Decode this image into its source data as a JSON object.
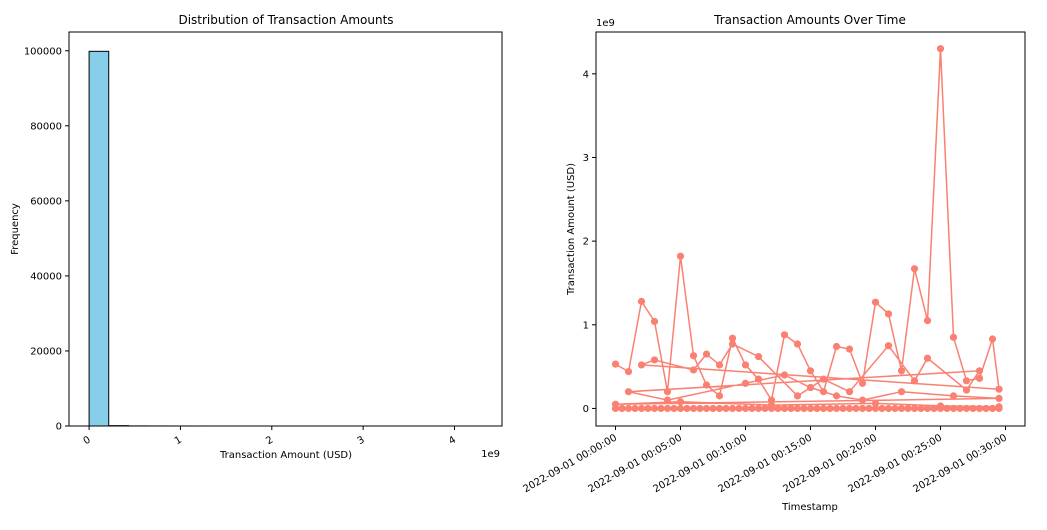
{
  "chart_data": [
    {
      "type": "bar",
      "title": "Distribution of Transaction Amounts",
      "xlabel": "Transaction Amount (USD)",
      "ylabel": "Frequency",
      "x_offset_label": "1e9",
      "xlim": [
        -0.22,
        4.52
      ],
      "ylim": [
        0,
        105000
      ],
      "x_ticks": [
        0,
        1,
        2,
        3,
        4
      ],
      "x_tick_labels": [
        "0",
        "1",
        "2",
        "3",
        "4"
      ],
      "y_ticks": [
        0,
        20000,
        40000,
        60000,
        80000,
        100000
      ],
      "y_tick_labels": [
        "0",
        "20000",
        "40000",
        "60000",
        "80000",
        "100000"
      ],
      "bins": [
        [
          0,
          0.215,
          99850
        ],
        [
          0.215,
          0.43,
          95
        ],
        [
          0.43,
          0.645,
          25
        ],
        [
          0.645,
          0.86,
          12
        ],
        [
          0.86,
          1.075,
          6
        ],
        [
          1.075,
          1.29,
          4
        ],
        [
          1.29,
          1.505,
          2
        ],
        [
          1.505,
          1.72,
          2
        ],
        [
          1.72,
          1.935,
          1
        ],
        [
          4.085,
          4.3,
          1
        ]
      ],
      "bar_color": "#87ceeb",
      "edge_color": "#000000",
      "grid": false
    },
    {
      "type": "line",
      "title": "Transaction Amounts Over Time",
      "xlabel": "Timestamp",
      "ylabel": "Transaction Amount (USD)",
      "y_offset_label": "1e9",
      "xlim_minutes": [
        -1.5,
        31.5
      ],
      "ylim": [
        -0.21,
        4.5
      ],
      "x_ticks_minutes": [
        0,
        5,
        10,
        15,
        20,
        25,
        30
      ],
      "x_tick_labels": [
        "2022-09-01 00:00:00",
        "2022-09-01 00:05:00",
        "2022-09-01 00:10:00",
        "2022-09-01 00:15:00",
        "2022-09-01 00:20:00",
        "2022-09-01 00:25:00",
        "2022-09-01 00:30:00"
      ],
      "y_ticks": [
        0,
        1,
        2,
        3,
        4
      ],
      "y_tick_labels": [
        "0",
        "1",
        "2",
        "3",
        "4"
      ],
      "line_color": "#fa8072",
      "marker": "o",
      "grid": false,
      "points": [
        [
          0,
          0.53
        ],
        [
          1,
          0.44
        ],
        [
          2,
          1.28
        ],
        [
          3,
          1.04
        ],
        [
          4,
          0.2
        ],
        [
          5,
          1.82
        ],
        [
          6,
          0.63
        ],
        [
          7,
          0.28
        ],
        [
          8,
          0.15
        ],
        [
          9,
          0.84
        ],
        [
          10,
          0.52
        ],
        [
          11,
          0.35
        ],
        [
          12,
          0.1
        ],
        [
          13,
          0.88
        ],
        [
          14,
          0.77
        ],
        [
          15,
          0.45
        ],
        [
          16,
          0.2
        ],
        [
          17,
          0.74
        ],
        [
          18,
          0.71
        ],
        [
          19,
          0.3
        ],
        [
          20,
          1.27
        ],
        [
          21,
          1.13
        ],
        [
          22,
          0.45
        ],
        [
          23,
          1.67
        ],
        [
          24,
          1.05
        ],
        [
          25,
          4.3
        ],
        [
          26,
          0.85
        ],
        [
          27,
          0.33
        ],
        [
          28,
          0.36
        ],
        [
          29,
          0.83
        ],
        [
          29.5,
          0.23
        ],
        [
          2,
          0.52
        ],
        [
          3,
          0.58
        ],
        [
          6,
          0.46
        ],
        [
          7,
          0.65
        ],
        [
          8,
          0.52
        ],
        [
          9,
          0.77
        ],
        [
          11,
          0.62
        ],
        [
          14,
          0.15
        ],
        [
          16,
          0.35
        ],
        [
          18,
          0.2
        ],
        [
          21,
          0.75
        ],
        [
          23,
          0.33
        ],
        [
          24,
          0.6
        ],
        [
          27,
          0.22
        ],
        [
          28,
          0.45
        ],
        [
          1,
          0.2
        ],
        [
          4,
          0.1
        ],
        [
          10,
          0.3
        ],
        [
          13,
          0.4
        ],
        [
          15,
          0.25
        ],
        [
          17,
          0.15
        ],
        [
          19,
          0.1
        ],
        [
          22,
          0.2
        ],
        [
          26,
          0.15
        ],
        [
          29.5,
          0.12
        ],
        [
          0,
          0.05
        ],
        [
          5,
          0.08
        ],
        [
          12,
          0.04
        ],
        [
          20,
          0.06
        ],
        [
          25,
          0.03
        ],
        [
          29.5,
          0.02
        ]
      ]
    }
  ]
}
